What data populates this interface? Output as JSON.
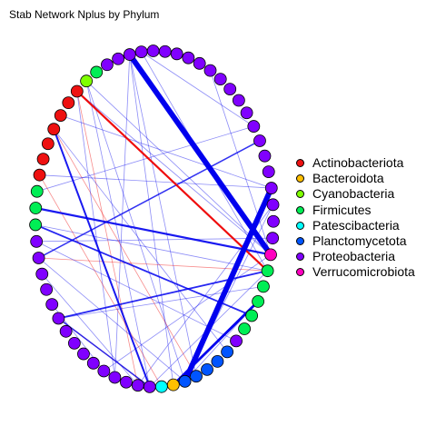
{
  "title": "Stab Network Nplus by Phylum",
  "legend": [
    {
      "label": "Actinobacteriota",
      "color": "#ee1111"
    },
    {
      "label": "Bacteroidota",
      "color": "#ffbf00"
    },
    {
      "label": "Cyanobacteria",
      "color": "#7fff00"
    },
    {
      "label": "Firmicutes",
      "color": "#00ee55"
    },
    {
      "label": "Patescibacteria",
      "color": "#00ffff"
    },
    {
      "label": "Planctomycetota",
      "color": "#0055ff"
    },
    {
      "label": "Proteobacteria",
      "color": "#8000ff"
    },
    {
      "label": "Verrucomicrobiota",
      "color": "#ff00bf"
    }
  ]
}
